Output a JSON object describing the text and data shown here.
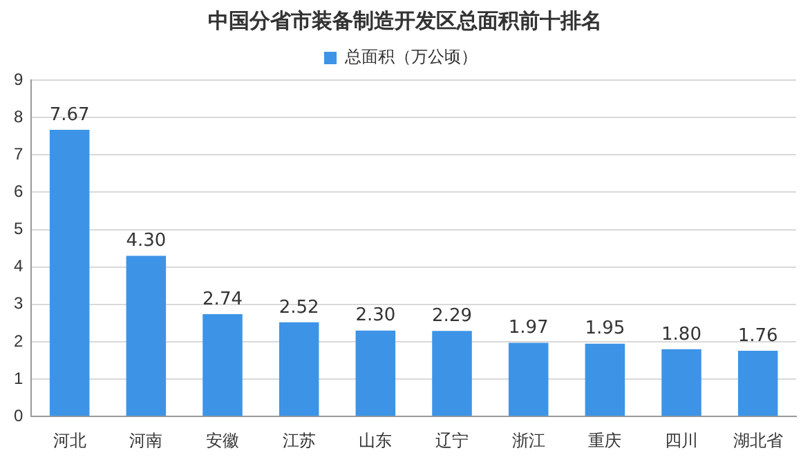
{
  "chart_data": {
    "type": "bar",
    "title": "中国分省市装备制造开发区总面积前十排名",
    "categories": [
      "河北",
      "河南",
      "安徽",
      "江苏",
      "山东",
      "辽宁",
      "浙江",
      "重庆",
      "四川",
      "湖北省"
    ],
    "series": [
      {
        "name": "总面积（万公顷）",
        "color": "#3d94e6",
        "values": [
          7.67,
          4.3,
          2.74,
          2.52,
          2.3,
          2.29,
          1.97,
          1.95,
          1.8,
          1.76
        ],
        "value_labels": [
          "7.67",
          "4.30",
          "2.74",
          "2.52",
          "2.30",
          "2.29",
          "1.97",
          "1.95",
          "1.80",
          "1.76"
        ]
      }
    ],
    "ylim": [
      0,
      9
    ],
    "yticks": [
      0,
      1,
      2,
      3,
      4,
      5,
      6,
      7,
      8,
      9
    ],
    "grid": "y",
    "legend": "top"
  }
}
